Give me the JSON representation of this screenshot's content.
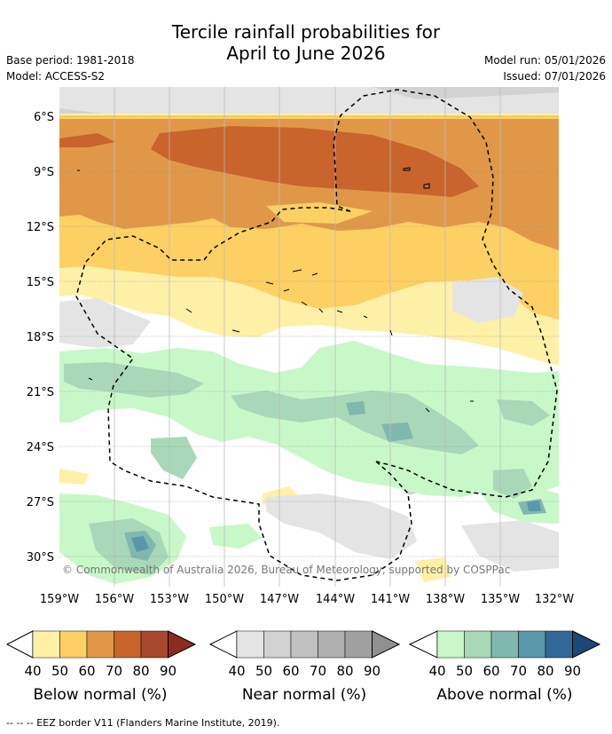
{
  "title": {
    "line1": "Tercile rainfall probabilities for",
    "line2": "April to June 2026"
  },
  "info": {
    "base_period": "Base period: 1981-2018",
    "model": "Model: ACCESS-S2",
    "model_run": "Model run: 05/01/2026",
    "issued": "Issued: 07/01/2026"
  },
  "axes": {
    "lat_labels": [
      "6°S",
      "9°S",
      "12°S",
      "15°S",
      "18°S",
      "21°S",
      "24°S",
      "27°S",
      "30°S"
    ],
    "lat_values": [
      -6,
      -9,
      -12,
      -15,
      -18,
      -21,
      -24,
      -27,
      -30
    ],
    "lon_labels": [
      "159°W",
      "156°W",
      "153°W",
      "150°W",
      "147°W",
      "144°W",
      "141°W",
      "138°W",
      "135°W",
      "132°W"
    ],
    "lon_values": [
      -159,
      -156,
      -153,
      -150,
      -147,
      -144,
      -141,
      -138,
      -135,
      -132
    ],
    "lat_range": [
      -31.5,
      -4.5
    ],
    "lon_range": [
      -159,
      -132
    ]
  },
  "copyright": "© Commonwealth of Australia 2026, Bureau of Meteorology, supported by COSPPac",
  "legend": {
    "below": {
      "label": "Below normal (%)",
      "ticks": [
        "40",
        "50",
        "60",
        "70",
        "80",
        "90"
      ],
      "colors": [
        "#fff0a8",
        "#fdd064",
        "#e09848",
        "#c8642c",
        "#a8482c",
        "#8c2c1c"
      ]
    },
    "near": {
      "label": "Near normal (%)",
      "ticks": [
        "40",
        "50",
        "60",
        "70",
        "80",
        "90"
      ],
      "colors": [
        "#e4e4e4",
        "#d2d2d2",
        "#c0c0c0",
        "#b0b0b0",
        "#a0a0a0",
        "#909090"
      ]
    },
    "above": {
      "label": "Above normal (%)",
      "ticks": [
        "40",
        "50",
        "60",
        "70",
        "80",
        "90"
      ],
      "colors": [
        "#c8f8c8",
        "#a8d8b8",
        "#80b8b0",
        "#5898a8",
        "#306898",
        "#1c4878"
      ]
    }
  },
  "footer": "-- -- -- EEZ border V11 (Flanders Marine Institute, 2019)."
}
